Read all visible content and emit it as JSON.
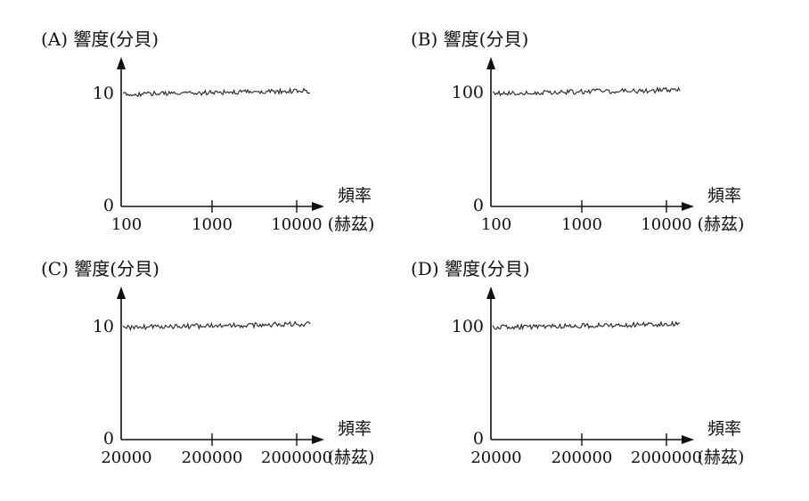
{
  "chart_data": [
    {
      "type": "line",
      "title": "(A) 響度(分貝)",
      "xlabel_line1": "頻率",
      "xlabel_line2": "(赫茲)",
      "x_scale": "log",
      "x_ticks": [
        "100",
        "1000",
        "10000"
      ],
      "y_ticks": [
        "10",
        "0"
      ],
      "series": [
        {
          "x": [
            100,
            1000,
            10000,
            15000
          ],
          "y": [
            10,
            10.2,
            10.4,
            10.5
          ]
        }
      ]
    },
    {
      "type": "line",
      "title": "(B) 響度(分貝)",
      "xlabel_line1": "頻率",
      "xlabel_line2": "(赫茲)",
      "x_scale": "log",
      "x_ticks": [
        "100",
        "1000",
        "10000"
      ],
      "y_ticks": [
        "100",
        "0"
      ],
      "series": [
        {
          "x": [
            100,
            1000,
            10000,
            15000
          ],
          "y": [
            100,
            102,
            104,
            105
          ]
        }
      ]
    },
    {
      "type": "line",
      "title": "(C) 響度(分貝)",
      "xlabel_line1": "頻率",
      "xlabel_line2": "(赫茲)",
      "x_scale": "log",
      "x_ticks": [
        "20000",
        "200000",
        "2000000"
      ],
      "y_ticks": [
        "10",
        "0"
      ],
      "series": [
        {
          "x": [
            20000,
            200000,
            2000000,
            3000000
          ],
          "y": [
            10,
            10.2,
            10.4,
            10.5
          ]
        }
      ]
    },
    {
      "type": "line",
      "title": "(D) 響度(分貝)",
      "xlabel_line1": "頻率",
      "xlabel_line2": "(赫茲)",
      "x_scale": "log",
      "x_ticks": [
        "20000",
        "200000",
        "2000000"
      ],
      "y_ticks": [
        "100",
        "0"
      ],
      "series": [
        {
          "x": [
            20000,
            200000,
            2000000,
            3000000
          ],
          "y": [
            100,
            102,
            104,
            105
          ]
        }
      ]
    }
  ]
}
